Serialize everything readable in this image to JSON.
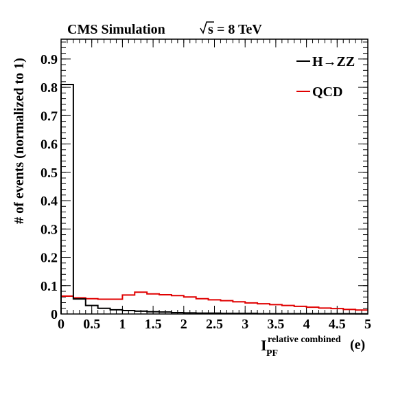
{
  "header": {
    "cms": "CMS Simulation",
    "energy_prefix": "√s",
    "energy_value": "= 8 TeV"
  },
  "chart_data": {
    "type": "histogram",
    "title": "",
    "ylabel": "# of events (normalized to 1)",
    "xlabel": {
      "main": "I",
      "subscript": "PF",
      "superscript": "relative combined",
      "suffix": "(e)"
    },
    "xlim": [
      0,
      5
    ],
    "ylim": [
      0,
      0.97
    ],
    "xticks": [
      "0",
      "0.5",
      "1",
      "1.5",
      "2",
      "2.5",
      "3",
      "3.5",
      "4",
      "4.5",
      "5"
    ],
    "xtick_values": [
      0,
      0.5,
      1,
      1.5,
      2,
      2.5,
      3,
      3.5,
      4,
      4.5,
      5
    ],
    "yticks": [
      "0",
      "0.1",
      "0.2",
      "0.3",
      "0.4",
      "0.5",
      "0.6",
      "0.7",
      "0.8",
      "0.9"
    ],
    "ytick_values": [
      0,
      0.1,
      0.2,
      0.3,
      0.4,
      0.5,
      0.6,
      0.7,
      0.8,
      0.9
    ],
    "bin_width": 0.2,
    "legend_position": "top-right",
    "series": [
      {
        "name": "H→ZZ",
        "color": "#000000",
        "values": [
          0.81,
          0.053,
          0.03,
          0.02,
          0.015,
          0.012,
          0.01,
          0.008,
          0.007,
          0.005,
          0.004,
          0.003,
          0.003,
          0.002,
          0.002,
          0.002,
          0.001,
          0.001,
          0.001,
          0.001,
          0.001,
          0.001,
          0.001,
          0.0008,
          0.0005
        ]
      },
      {
        "name": "QCD",
        "color": "#e00000",
        "values": [
          0.063,
          0.057,
          0.054,
          0.052,
          0.052,
          0.067,
          0.077,
          0.071,
          0.068,
          0.065,
          0.06,
          0.054,
          0.05,
          0.047,
          0.043,
          0.039,
          0.036,
          0.033,
          0.03,
          0.027,
          0.024,
          0.021,
          0.019,
          0.016,
          0.014
        ]
      }
    ]
  }
}
